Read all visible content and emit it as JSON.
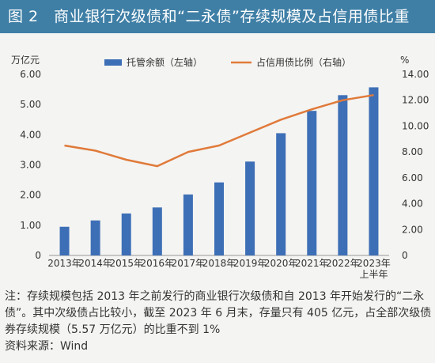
{
  "header": {
    "title": "图 2　商业银行次级债和“二永债”存续规模及占信用债比重"
  },
  "chart_data": {
    "type": "bar+line",
    "categories": [
      "2013年",
      "2014年",
      "2015年",
      "2016年",
      "2017年",
      "2018年",
      "2019年",
      "2020年",
      "2021年",
      "2022年",
      "2023年上半年"
    ],
    "category_lines": [
      [
        "2013年"
      ],
      [
        "2014年"
      ],
      [
        "2015年"
      ],
      [
        "2016年"
      ],
      [
        "2017年"
      ],
      [
        "2018年"
      ],
      [
        "2019年"
      ],
      [
        "2020年"
      ],
      [
        "2021年"
      ],
      [
        "2022年"
      ],
      [
        "2023年",
        "上半年"
      ]
    ],
    "series": [
      {
        "name": "托管余额（左轴）",
        "type": "bar",
        "axis": "left",
        "color": "#3d6fb6",
        "values": [
          0.95,
          1.16,
          1.39,
          1.59,
          2.02,
          2.42,
          3.11,
          4.05,
          4.79,
          5.31,
          5.57
        ]
      },
      {
        "name": "占信用债比例（右轴）",
        "type": "line",
        "axis": "right",
        "color": "#e07a3a",
        "values": [
          8.5,
          8.1,
          7.4,
          6.9,
          8.0,
          8.5,
          9.5,
          10.5,
          11.3,
          12.0,
          12.4
        ]
      }
    ],
    "y_left": {
      "unit": "万亿元",
      "min": 0,
      "max": 6,
      "ticks": [
        "0",
        "1.00",
        "2.00",
        "3.00",
        "4.00",
        "5.00",
        "6.00"
      ]
    },
    "y_right": {
      "unit": "%",
      "min": 0,
      "max": 14,
      "ticks": [
        "0",
        "2.00",
        "4.00",
        "6.00",
        "8.00",
        "10.00",
        "12.00",
        "14.00"
      ]
    },
    "grid": false,
    "legend_position": "top-center"
  },
  "footer": {
    "note": "注：存续规模包括 2013 年之前发行的商业银行次级债和自 2013 年开始发行的“二永债”。其中次级债占比较小，截至 2023 年 6 月末，存量只有 405 亿元，占全部次级债券存续规模（5.57 万亿元）的比重不到 1%",
    "source": "资料来源：Wind"
  }
}
